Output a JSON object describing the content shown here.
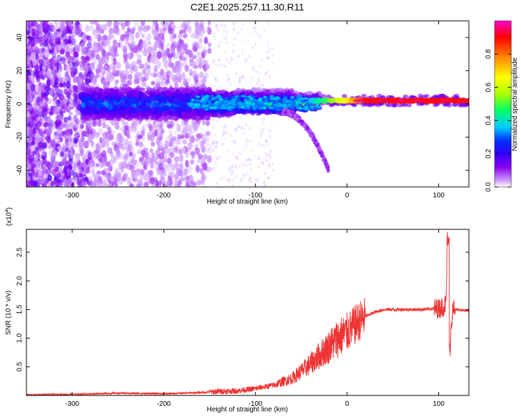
{
  "title": "C2E1.2025.257.11.30.R11",
  "top_panel": {
    "ylabel": "Frequency (Hz)",
    "xlabel": "Height of straight line (km)",
    "colorbar_label": "Normalized spectral amplitude"
  },
  "bottom_panel": {
    "ylabel": "SNR (10 * v/v)",
    "xlabel": "Height of straight line (km)",
    "y_multiplier_base": "(x10",
    "y_multiplier_exp": "4",
    "y_multiplier_close": ")"
  },
  "chart_data": [
    {
      "type": "heatmap",
      "title": "C2E1.2025.257.11.30.R11",
      "xlabel": "Height of straight line (km)",
      "ylabel": "Frequency (Hz)",
      "xlim": [
        -350,
        133
      ],
      "ylim": [
        -50,
        50
      ],
      "x_ticks": [
        -300,
        -200,
        -100,
        0,
        100
      ],
      "y_ticks": [
        -40,
        -20,
        0,
        20,
        40
      ],
      "colorbar": {
        "label": "Normalized spectral amplitude",
        "range": [
          0,
          1
        ],
        "ticks": [
          0.0,
          0.2,
          0.4,
          0.6,
          0.8
        ],
        "colormap": [
          "#ffffff",
          "#cc99ff",
          "#8800ee",
          "#3300ff",
          "#0033ff",
          "#00ccff",
          "#00ff66",
          "#aaff00",
          "#ffff00",
          "#ff8800",
          "#ff0000",
          "#ff00cc"
        ]
      },
      "features": {
        "noise_region_x": [
          -350,
          -190
        ],
        "carrier_frequency_hz": 2,
        "carrier_onset_km": -40,
        "lower_branch_end": {
          "x": -20,
          "y": -40
        }
      }
    },
    {
      "type": "line",
      "xlabel": "Height of straight line (km)",
      "ylabel": "SNR (10 * v/v)",
      "xlim": [
        -350,
        133
      ],
      "ylim": [
        0,
        2.9
      ],
      "x_ticks": [
        -300,
        -200,
        -100,
        0,
        100
      ],
      "y_ticks": [
        0.5,
        1.0,
        1.5,
        2.0,
        2.5
      ],
      "y_scale_note": "x10^4",
      "series": [
        {
          "color": "#ee3333",
          "x": [
            -350,
            -300,
            -250,
            -200,
            -160,
            -140,
            -120,
            -100,
            -80,
            -60,
            -50,
            -40,
            -30,
            -20,
            -10,
            0,
            10,
            20,
            30,
            40,
            60,
            80,
            100,
            105,
            108,
            110,
            112,
            115,
            133
          ],
          "y": [
            0.01,
            0.02,
            0.04,
            0.03,
            0.05,
            0.07,
            0.08,
            0.12,
            0.18,
            0.3,
            0.42,
            0.55,
            0.7,
            0.85,
            1.0,
            1.1,
            1.25,
            1.38,
            1.45,
            1.5,
            1.5,
            1.5,
            1.52,
            1.55,
            1.6,
            2.85,
            0.7,
            1.5,
            1.48
          ]
        }
      ]
    }
  ]
}
